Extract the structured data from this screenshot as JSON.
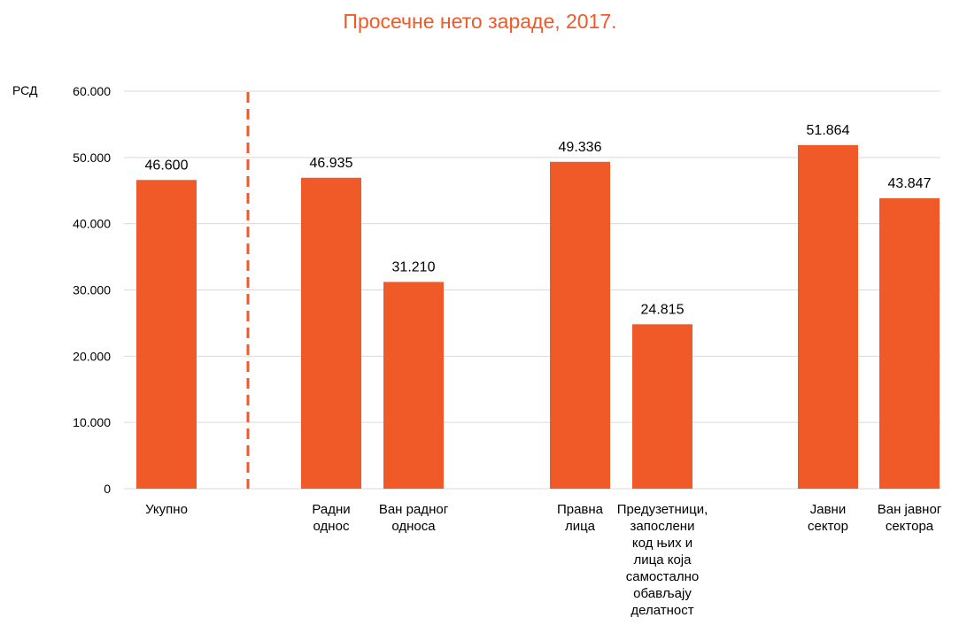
{
  "colors": {
    "bar": "#f05a28",
    "title": "#f05a28",
    "grid": "#d9d9d9",
    "separator": "#f05a28"
  },
  "chart_data": {
    "type": "bar",
    "title": "Просечне нето зараде, 2017.",
    "ylabel": "РСД",
    "xlabel": "",
    "ylim": [
      0,
      60000
    ],
    "yticks": [
      0,
      10000,
      20000,
      30000,
      40000,
      50000,
      60000
    ],
    "ytick_labels": [
      "0",
      "10.000",
      "20.000",
      "30.000",
      "40.000",
      "50.000",
      "60.000"
    ],
    "grid": true,
    "legend": "none",
    "categories": [
      "Укупно",
      "Радни однос",
      "Ван радног односа",
      "Правна лица",
      "Предузетници, запослени код њих и лица која самостално обављају делатност",
      "Јавни сектор",
      "Ван јавног сектора"
    ],
    "category_label_lines": [
      [
        "Укупно"
      ],
      [
        "Радни",
        "однос"
      ],
      [
        "Ван радног",
        "односа"
      ],
      [
        "Правна",
        "лица"
      ],
      [
        "Предузетници,",
        "запослени",
        "код њих и",
        "лица која",
        "самостално",
        "обављају",
        "делатност"
      ],
      [
        "Јавни",
        "сектор"
      ],
      [
        "Ван јавног",
        "сектора"
      ]
    ],
    "values": [
      46600,
      46935,
      31210,
      49336,
      24815,
      51864,
      43847
    ],
    "value_labels": [
      "46.600",
      "46.935",
      "31.210",
      "49.336",
      "24.815",
      "51.864",
      "43.847"
    ],
    "annotations": [
      "dashed vertical separator after first category"
    ]
  }
}
